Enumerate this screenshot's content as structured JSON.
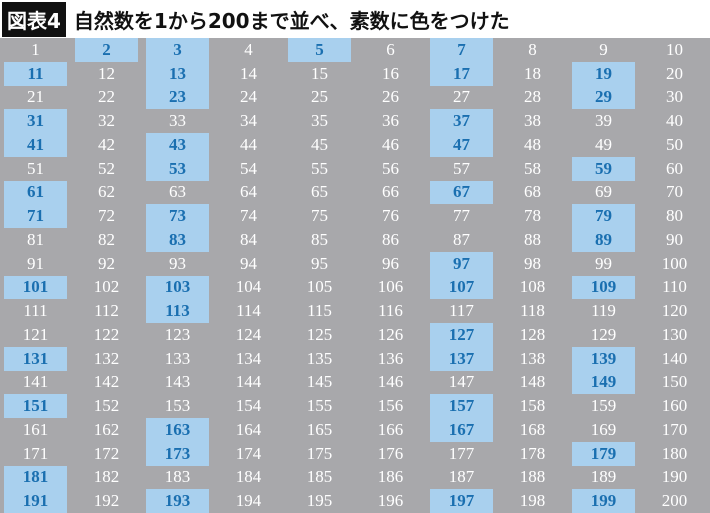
{
  "header": {
    "label": "図表4",
    "title": "自然数を1から200まで並べ、素数に色をつけた"
  },
  "table": {
    "prime_color": "#a9d0ee",
    "rows": [
      [
        {
          "n": 1
        },
        {
          "n": 2,
          "prime": true
        },
        {
          "n": 3,
          "prime": true
        },
        {
          "n": 4
        },
        {
          "n": 5,
          "prime": true
        },
        {
          "n": 6
        },
        {
          "n": 7,
          "prime": true
        },
        {
          "n": 8
        },
        {
          "n": 9
        },
        {
          "n": 10
        }
      ],
      [
        {
          "n": 11,
          "prime": true
        },
        {
          "n": 12
        },
        {
          "n": 13,
          "prime": true
        },
        {
          "n": 14
        },
        {
          "n": 15
        },
        {
          "n": 16
        },
        {
          "n": 17,
          "prime": true
        },
        {
          "n": 18
        },
        {
          "n": 19,
          "prime": true
        },
        {
          "n": 20
        }
      ],
      [
        {
          "n": 21
        },
        {
          "n": 22
        },
        {
          "n": 23,
          "prime": true
        },
        {
          "n": 24
        },
        {
          "n": 25
        },
        {
          "n": 26
        },
        {
          "n": 27
        },
        {
          "n": 28
        },
        {
          "n": 29,
          "prime": true
        },
        {
          "n": 30
        }
      ],
      [
        {
          "n": 31,
          "prime": true
        },
        {
          "n": 32
        },
        {
          "n": 33
        },
        {
          "n": 34
        },
        {
          "n": 35
        },
        {
          "n": 36
        },
        {
          "n": 37,
          "prime": true
        },
        {
          "n": 38
        },
        {
          "n": 39
        },
        {
          "n": 40
        }
      ],
      [
        {
          "n": 41,
          "prime": true
        },
        {
          "n": 42
        },
        {
          "n": 43,
          "prime": true
        },
        {
          "n": 44
        },
        {
          "n": 45
        },
        {
          "n": 46
        },
        {
          "n": 47,
          "prime": true
        },
        {
          "n": 48
        },
        {
          "n": 49
        },
        {
          "n": 50
        }
      ],
      [
        {
          "n": 51
        },
        {
          "n": 52
        },
        {
          "n": 53,
          "prime": true
        },
        {
          "n": 54
        },
        {
          "n": 55
        },
        {
          "n": 56
        },
        {
          "n": 57
        },
        {
          "n": 58
        },
        {
          "n": 59,
          "prime": true
        },
        {
          "n": 60
        }
      ],
      [
        {
          "n": 61,
          "prime": true
        },
        {
          "n": 62
        },
        {
          "n": 63
        },
        {
          "n": 64
        },
        {
          "n": 65
        },
        {
          "n": 66
        },
        {
          "n": 67,
          "prime": true
        },
        {
          "n": 68
        },
        {
          "n": 69
        },
        {
          "n": 70
        }
      ],
      [
        {
          "n": 71,
          "prime": true
        },
        {
          "n": 72
        },
        {
          "n": 73,
          "prime": true
        },
        {
          "n": 74
        },
        {
          "n": 75
        },
        {
          "n": 76
        },
        {
          "n": 77
        },
        {
          "n": 78
        },
        {
          "n": 79,
          "prime": true
        },
        {
          "n": 80
        }
      ],
      [
        {
          "n": 81
        },
        {
          "n": 82
        },
        {
          "n": 83,
          "prime": true
        },
        {
          "n": 84
        },
        {
          "n": 85
        },
        {
          "n": 86
        },
        {
          "n": 87
        },
        {
          "n": 88
        },
        {
          "n": 89,
          "prime": true
        },
        {
          "n": 90
        }
      ],
      [
        {
          "n": 91
        },
        {
          "n": 92
        },
        {
          "n": 93
        },
        {
          "n": 94
        },
        {
          "n": 95
        },
        {
          "n": 96
        },
        {
          "n": 97,
          "prime": true
        },
        {
          "n": 98
        },
        {
          "n": 99
        },
        {
          "n": 100
        }
      ],
      [
        {
          "n": 101,
          "prime": true
        },
        {
          "n": 102
        },
        {
          "n": 103,
          "prime": true
        },
        {
          "n": 104
        },
        {
          "n": 105
        },
        {
          "n": 106
        },
        {
          "n": 107,
          "prime": true
        },
        {
          "n": 108
        },
        {
          "n": 109,
          "prime": true
        },
        {
          "n": 110
        }
      ],
      [
        {
          "n": 111
        },
        {
          "n": 112
        },
        {
          "n": 113,
          "prime": true
        },
        {
          "n": 114
        },
        {
          "n": 115
        },
        {
          "n": 116
        },
        {
          "n": 117
        },
        {
          "n": 118
        },
        {
          "n": 119
        },
        {
          "n": 120
        }
      ],
      [
        {
          "n": 121
        },
        {
          "n": 122
        },
        {
          "n": 123
        },
        {
          "n": 124
        },
        {
          "n": 125
        },
        {
          "n": 126
        },
        {
          "n": 127,
          "prime": true
        },
        {
          "n": 128
        },
        {
          "n": 129
        },
        {
          "n": 130
        }
      ],
      [
        {
          "n": 131,
          "prime": true
        },
        {
          "n": 132
        },
        {
          "n": 133
        },
        {
          "n": 134
        },
        {
          "n": 135
        },
        {
          "n": 136
        },
        {
          "n": 137,
          "prime": true
        },
        {
          "n": 138
        },
        {
          "n": 139,
          "prime": true
        },
        {
          "n": 140
        }
      ],
      [
        {
          "n": 141
        },
        {
          "n": 142
        },
        {
          "n": 143
        },
        {
          "n": 144
        },
        {
          "n": 145
        },
        {
          "n": 146
        },
        {
          "n": 147
        },
        {
          "n": 148
        },
        {
          "n": 149,
          "prime": true
        },
        {
          "n": 150
        }
      ],
      [
        {
          "n": 151,
          "prime": true
        },
        {
          "n": 152
        },
        {
          "n": 153
        },
        {
          "n": 154
        },
        {
          "n": 155
        },
        {
          "n": 156
        },
        {
          "n": 157,
          "prime": true
        },
        {
          "n": 158
        },
        {
          "n": 159
        },
        {
          "n": 160
        }
      ],
      [
        {
          "n": 161
        },
        {
          "n": 162
        },
        {
          "n": 163,
          "prime": true
        },
        {
          "n": 164
        },
        {
          "n": 165
        },
        {
          "n": 166
        },
        {
          "n": 167,
          "prime": true
        },
        {
          "n": 168
        },
        {
          "n": 169
        },
        {
          "n": 170
        }
      ],
      [
        {
          "n": 171
        },
        {
          "n": 172
        },
        {
          "n": 173,
          "prime": true
        },
        {
          "n": 174
        },
        {
          "n": 175
        },
        {
          "n": 176
        },
        {
          "n": 177
        },
        {
          "n": 178
        },
        {
          "n": 179,
          "prime": true
        },
        {
          "n": 180
        }
      ],
      [
        {
          "n": 181,
          "prime": true
        },
        {
          "n": 182
        },
        {
          "n": 183
        },
        {
          "n": 184
        },
        {
          "n": 185
        },
        {
          "n": 186
        },
        {
          "n": 187
        },
        {
          "n": 188
        },
        {
          "n": 189
        },
        {
          "n": 190
        }
      ],
      [
        {
          "n": 191,
          "prime": true
        },
        {
          "n": 192
        },
        {
          "n": 193,
          "prime": true
        },
        {
          "n": 194
        },
        {
          "n": 195
        },
        {
          "n": 196
        },
        {
          "n": 197,
          "prime": true
        },
        {
          "n": 198
        },
        {
          "n": 199,
          "prime": true
        },
        {
          "n": 200
        }
      ]
    ]
  }
}
